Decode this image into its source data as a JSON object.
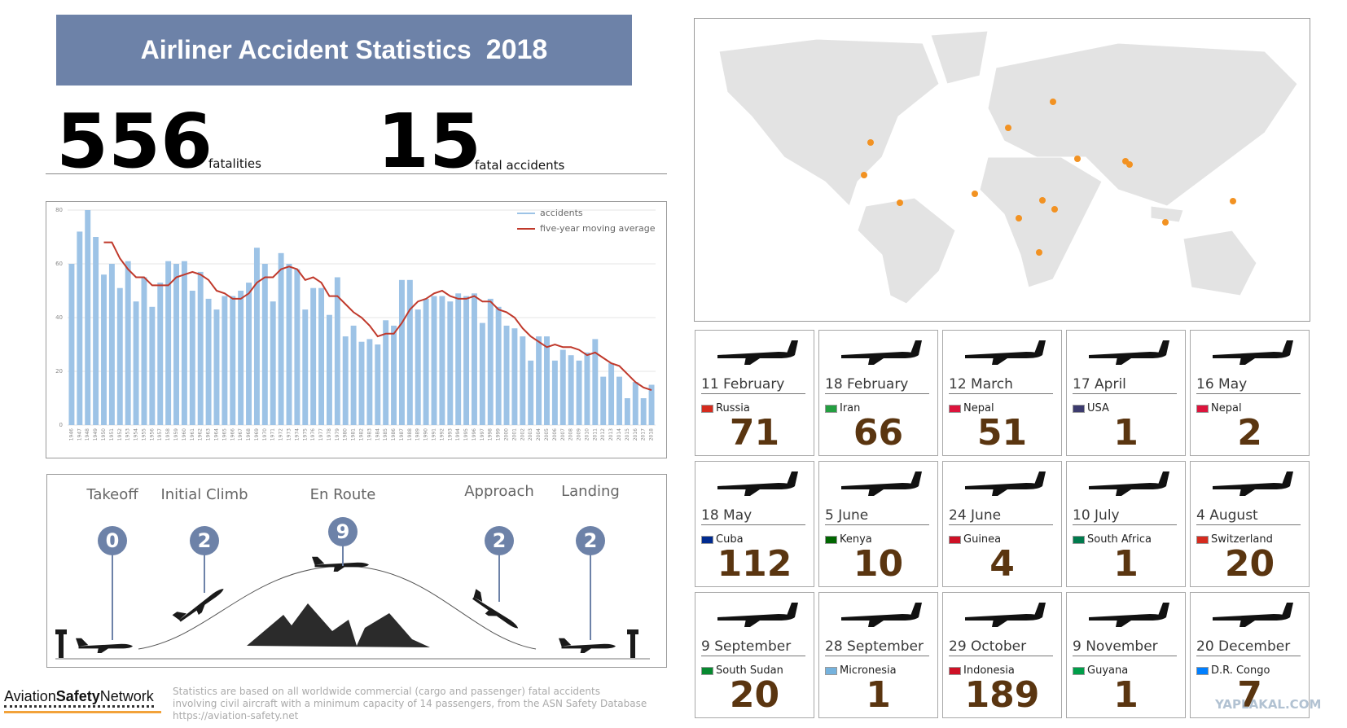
{
  "header": {
    "title": "Airliner Accident Statistics",
    "year": "2018"
  },
  "stats": {
    "fatalities": {
      "value": 556,
      "label": "fatalities"
    },
    "accidents": {
      "value": 15,
      "label": "fatal accidents"
    }
  },
  "chart_data": {
    "type": "bar",
    "categories": [
      "1946",
      "1947",
      "1948",
      "1949",
      "1950",
      "1951",
      "1952",
      "1953",
      "1954",
      "1955",
      "1956",
      "1957",
      "1958",
      "1959",
      "1960",
      "1961",
      "1962",
      "1963",
      "1964",
      "1965",
      "1966",
      "1967",
      "1968",
      "1969",
      "1970",
      "1971",
      "1972",
      "1973",
      "1974",
      "1975",
      "1976",
      "1977",
      "1978",
      "1979",
      "1980",
      "1981",
      "1982",
      "1983",
      "1984",
      "1985",
      "1986",
      "1987",
      "1988",
      "1989",
      "1990",
      "1991",
      "1992",
      "1993",
      "1994",
      "1995",
      "1996",
      "1997",
      "1998",
      "1999",
      "2000",
      "2001",
      "2002",
      "2003",
      "2004",
      "2005",
      "2006",
      "2007",
      "2008",
      "2009",
      "2010",
      "2011",
      "2012",
      "2013",
      "2014",
      "2015",
      "2016",
      "2017",
      "2018"
    ],
    "series": [
      {
        "name": "accidents",
        "type": "bar",
        "color": "#9dc3e6",
        "values": [
          60,
          72,
          80,
          70,
          56,
          60,
          51,
          61,
          46,
          55,
          44,
          53,
          61,
          60,
          61,
          50,
          57,
          47,
          43,
          48,
          48,
          50,
          53,
          66,
          60,
          46,
          64,
          60,
          58,
          43,
          51,
          51,
          41,
          55,
          33,
          37,
          31,
          32,
          30,
          39,
          37,
          54,
          54,
          43,
          47,
          48,
          48,
          46,
          49,
          48,
          49,
          38,
          47,
          44,
          37,
          36,
          33,
          24,
          33,
          33,
          24,
          28,
          26,
          24,
          27,
          32,
          18,
          23,
          18,
          10,
          16,
          10,
          15
        ]
      },
      {
        "name": "five-year moving average",
        "type": "line",
        "color": "#c0392b",
        "values": [
          null,
          null,
          null,
          null,
          68,
          68,
          62,
          58,
          55,
          55,
          52,
          52,
          52,
          55,
          56,
          57,
          56,
          54,
          50,
          49,
          47,
          47,
          49,
          53,
          55,
          55,
          58,
          59,
          58,
          54,
          55,
          53,
          48,
          48,
          45,
          42,
          40,
          37,
          33,
          34,
          34,
          38,
          43,
          46,
          47,
          49,
          50,
          48,
          47,
          47,
          48,
          46,
          46,
          43,
          42,
          40,
          36,
          33,
          31,
          29,
          30,
          29,
          29,
          28,
          26,
          27,
          25,
          23,
          22,
          19,
          16,
          14,
          13
        ]
      }
    ],
    "ylim": [
      0,
      80
    ],
    "yticks": [
      0,
      20,
      40,
      60,
      80
    ],
    "grid": true,
    "legend": "top-right"
  },
  "phases": [
    {
      "label": "Takeoff",
      "value": 0
    },
    {
      "label": "Initial Climb",
      "value": 2
    },
    {
      "label": "En Route",
      "value": 9
    },
    {
      "label": "Approach",
      "value": 2
    },
    {
      "label": "Landing",
      "value": 2
    }
  ],
  "accidents": [
    {
      "date": "11 February",
      "country": "Russia",
      "fatalities": 71
    },
    {
      "date": "18 February",
      "country": "Iran",
      "fatalities": 66
    },
    {
      "date": "12 March",
      "country": "Nepal",
      "fatalities": 51
    },
    {
      "date": "17 April",
      "country": "USA",
      "fatalities": 1
    },
    {
      "date": "16 May",
      "country": "Nepal",
      "fatalities": 2
    },
    {
      "date": "18 May",
      "country": "Cuba",
      "fatalities": 112
    },
    {
      "date": "5 June",
      "country": "Kenya",
      "fatalities": 10
    },
    {
      "date": "24 June",
      "country": "Guinea",
      "fatalities": 4
    },
    {
      "date": "10 July",
      "country": "South Africa",
      "fatalities": 1
    },
    {
      "date": "4 August",
      "country": "Switzerland",
      "fatalities": 20
    },
    {
      "date": "9 September",
      "country": "South Sudan",
      "fatalities": 20
    },
    {
      "date": "28 September",
      "country": "Micronesia",
      "fatalities": 1
    },
    {
      "date": "29 October",
      "country": "Indonesia",
      "fatalities": 189
    },
    {
      "date": "9 November",
      "country": "Guyana",
      "fatalities": 1
    },
    {
      "date": "20 December",
      "country": "D.R. Congo",
      "fatalities": 7
    }
  ],
  "footer": {
    "logo": [
      "Aviation",
      "Safety",
      "Network"
    ],
    "note": [
      "Statistics are based on all worldwide commercial (cargo and passenger) fatal accidents",
      "involving civil aircraft with a minimum capacity of 14 passengers, from the ASN Safety Database",
      "https://aviation-safety.net"
    ],
    "watermark": "YAPLAKAL.COM"
  }
}
